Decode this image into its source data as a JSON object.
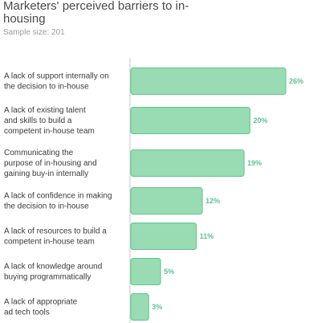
{
  "header": {
    "title": "Marketers' perceived barriers to in-housing",
    "sample_size": "Sample size: 201"
  },
  "colors": {
    "bar_fill": "#99dbb2",
    "bar_stroke": "#60c690",
    "value_text": "#5cc48e",
    "axis_line": "#c8c8c8"
  },
  "chart_data": {
    "type": "bar",
    "orientation": "horizontal",
    "categories": [
      [
        "A lack of support internally on",
        "the decision to in-house"
      ],
      [
        "A lack of existing talent",
        "and skills to build a",
        "competent in-house team"
      ],
      [
        "Communicating the",
        "purpose of in-housing and",
        "gaining buy-in internally"
      ],
      [
        "A lack of confidence in making",
        "the decision to in-house"
      ],
      [
        "A lack of resources to build a",
        "competent in-house team"
      ],
      [
        "A lack of knowledge around",
        "buying programmatically"
      ],
      [
        "A lack of appropriate",
        "ad tech tools"
      ]
    ],
    "values": [
      26,
      20,
      19,
      12,
      11,
      5,
      3
    ],
    "value_labels": [
      "26%",
      "20%",
      "19%",
      "12%",
      "11%",
      "5%",
      "3%"
    ],
    "unit": "%",
    "xlim": [
      0,
      28
    ]
  }
}
